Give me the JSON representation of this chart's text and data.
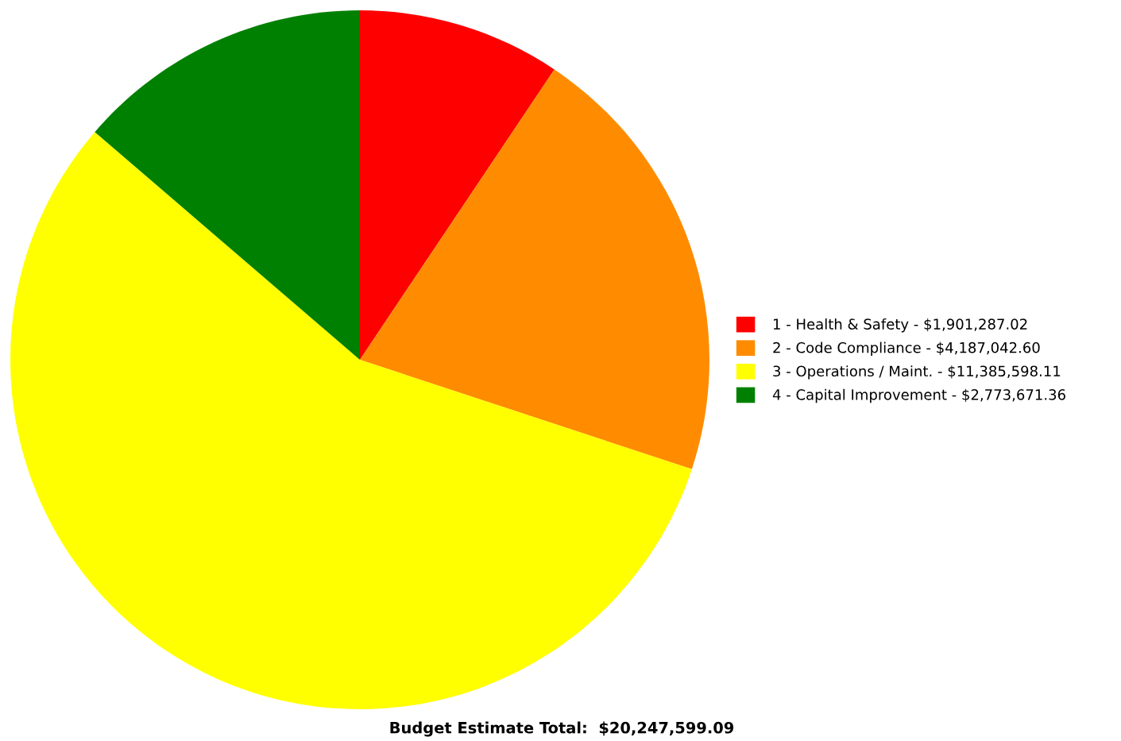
{
  "chart_data": {
    "type": "pie",
    "categories": [
      "1 - Health & Safety",
      "2 - Code Compliance",
      "3 - Operations / Maint.",
      "4 - Capital Improvement"
    ],
    "values": [
      1901287.02,
      4187042.6,
      11385598.11,
      2773671.36
    ],
    "value_labels": [
      "$1,901,287.02",
      "$4,187,042.60",
      "$11,385,598.11",
      "$2,773,671.36"
    ],
    "colors": [
      "#ff0000",
      "#ff8c00",
      "#ffff00",
      "#008000"
    ],
    "legend": "right",
    "annotations": [
      "Budget Estimate Total:  $20,247,599.09"
    ]
  }
}
